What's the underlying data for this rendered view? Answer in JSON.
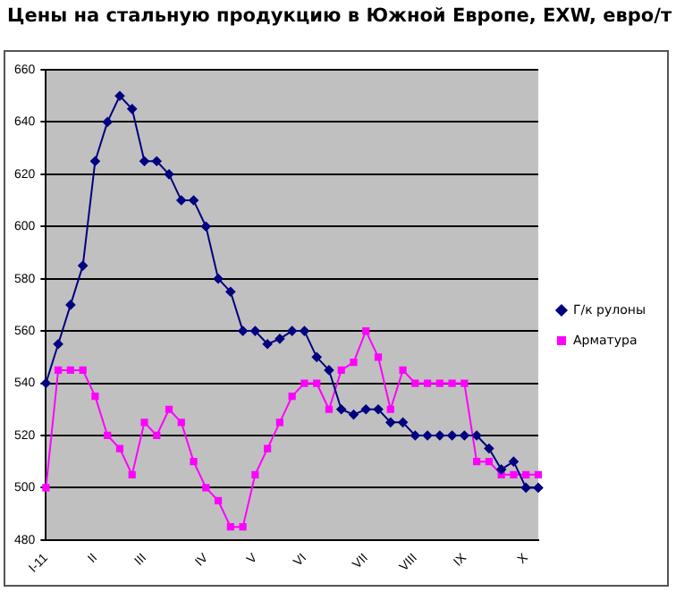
{
  "chart_data": {
    "type": "line",
    "title": "Цены на стальную продукцию в Южной Европе, EXW, евро/т",
    "categories": [
      "I-11",
      null,
      null,
      null,
      "II",
      null,
      null,
      null,
      "III",
      null,
      null,
      null,
      null,
      "IV",
      null,
      null,
      null,
      "V",
      null,
      null,
      null,
      "VI",
      null,
      null,
      null,
      null,
      "VII",
      null,
      null,
      null,
      "VIII",
      null,
      null,
      null,
      "IX",
      null,
      null,
      null,
      null,
      "X",
      null
    ],
    "series": [
      {
        "name": "Г/к рулоны",
        "color": "#000080",
        "marker": "diamond",
        "values": [
          540,
          555,
          570,
          585,
          625,
          640,
          650,
          645,
          625,
          625,
          620,
          610,
          610,
          600,
          580,
          575,
          560,
          560,
          555,
          557,
          560,
          560,
          550,
          545,
          530,
          528,
          530,
          530,
          525,
          525,
          520,
          520,
          520,
          520,
          520,
          520,
          515,
          507,
          510,
          500,
          500
        ]
      },
      {
        "name": "Арматура",
        "color": "#ff00ff",
        "marker": "square",
        "values": [
          500,
          545,
          545,
          545,
          535,
          520,
          515,
          505,
          525,
          520,
          530,
          525,
          510,
          500,
          495,
          485,
          485,
          505,
          515,
          525,
          535,
          540,
          540,
          530,
          545,
          548,
          560,
          550,
          530,
          545,
          540,
          540,
          540,
          540,
          540,
          510,
          510,
          505,
          505,
          505,
          505
        ]
      }
    ],
    "ylim": [
      480,
      660
    ],
    "yticks": [
      480,
      500,
      520,
      540,
      560,
      580,
      600,
      620,
      640,
      660
    ],
    "grid": "y",
    "legend": "right"
  }
}
